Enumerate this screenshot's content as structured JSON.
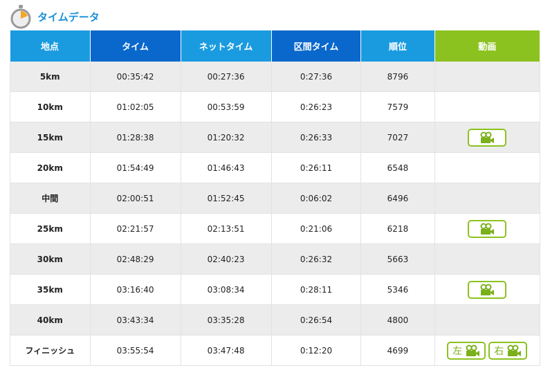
{
  "title": "タイムデータ",
  "headers": [
    "地点",
    "タイム",
    "ネットタイム",
    "区間タイム",
    "順位",
    "動画"
  ],
  "colors": {
    "header_light": "#1a9be0",
    "header_dark": "#0a68cc",
    "header_video": "#8cc21f"
  },
  "rows": [
    {
      "point": "5km",
      "time": "00:35:42",
      "net": "00:27:36",
      "split": "0:27:36",
      "rank": "8796",
      "video": []
    },
    {
      "point": "10km",
      "time": "01:02:05",
      "net": "00:53:59",
      "split": "0:26:23",
      "rank": "7579",
      "video": []
    },
    {
      "point": "15km",
      "time": "01:28:38",
      "net": "01:20:32",
      "split": "0:26:33",
      "rank": "7027",
      "video": [
        ""
      ]
    },
    {
      "point": "20km",
      "time": "01:54:49",
      "net": "01:46:43",
      "split": "0:26:11",
      "rank": "6548",
      "video": []
    },
    {
      "point": "中間",
      "time": "02:00:51",
      "net": "01:52:45",
      "split": "0:06:02",
      "rank": "6496",
      "video": []
    },
    {
      "point": "25km",
      "time": "02:21:57",
      "net": "02:13:51",
      "split": "0:21:06",
      "rank": "6218",
      "video": [
        ""
      ]
    },
    {
      "point": "30km",
      "time": "02:48:29",
      "net": "02:40:23",
      "split": "0:26:32",
      "rank": "5663",
      "video": []
    },
    {
      "point": "35km",
      "time": "03:16:40",
      "net": "03:08:34",
      "split": "0:28:11",
      "rank": "5346",
      "video": [
        ""
      ]
    },
    {
      "point": "40km",
      "time": "03:43:34",
      "net": "03:35:28",
      "split": "0:26:54",
      "rank": "4800",
      "video": []
    },
    {
      "point": "フィニッシュ",
      "time": "03:55:54",
      "net": "03:47:48",
      "split": "0:12:20",
      "rank": "4699",
      "video": [
        "左",
        "右"
      ]
    }
  ]
}
